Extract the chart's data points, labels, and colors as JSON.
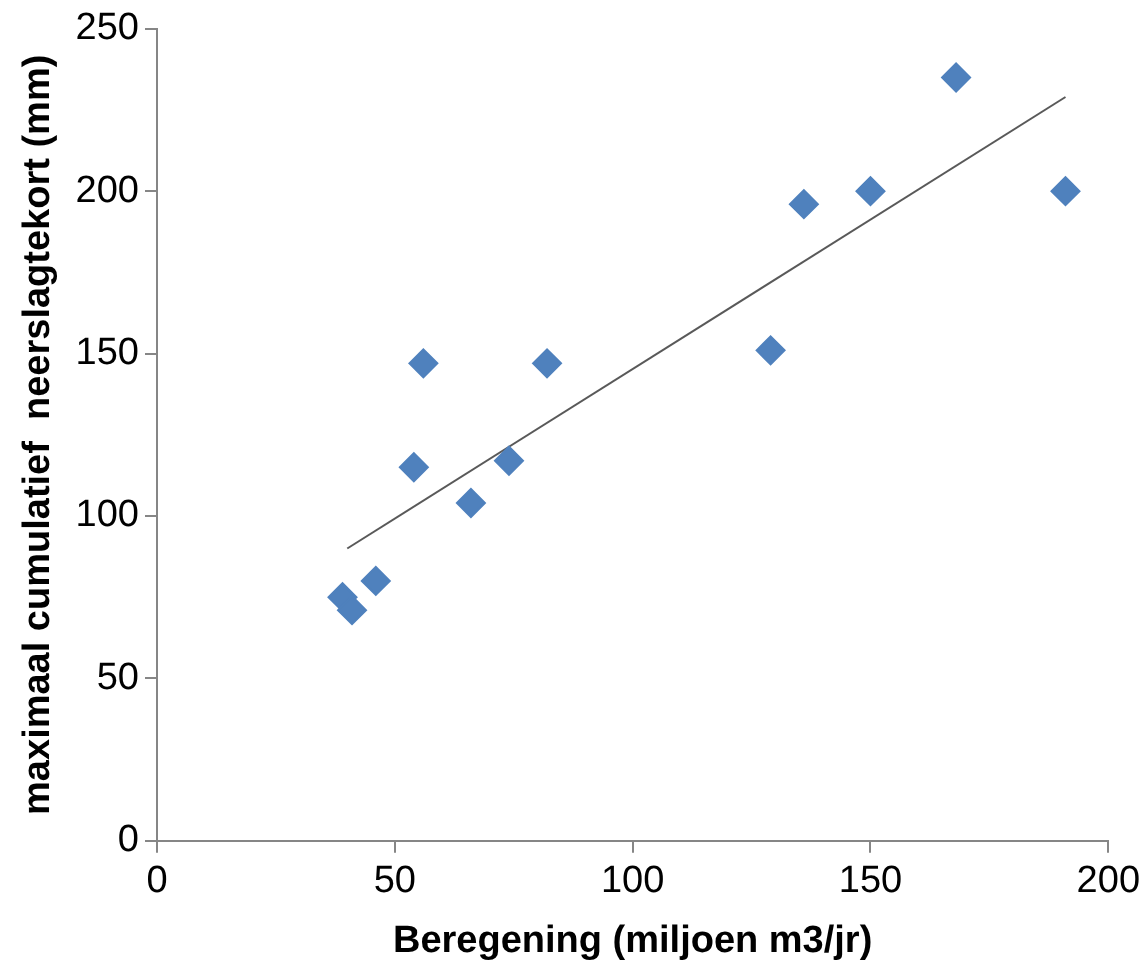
{
  "chart_data": {
    "type": "scatter",
    "xlabel": "Beregening (miljoen m3/jr)",
    "ylabel": "maximaal cumulatief  neerslagtekort (mm)",
    "xlim": [
      0,
      200
    ],
    "xticks": [
      0,
      50,
      100,
      150,
      200
    ],
    "ylim": [
      0,
      250
    ],
    "yticks": [
      0,
      50,
      100,
      150,
      200,
      250
    ],
    "grid": false,
    "legend": false,
    "series": [
      {
        "marker": "diamond",
        "color": "#4f81bd",
        "x": [
          39,
          41,
          46,
          54,
          56,
          66,
          74,
          82,
          129,
          136,
          150,
          168,
          191
        ],
        "values": [
          75,
          71,
          80,
          115,
          147,
          104,
          117,
          147,
          151,
          196,
          200,
          235,
          200
        ]
      },
      {
        "type": "line",
        "marker": "none",
        "color": "#595959",
        "x": [
          40,
          191
        ],
        "values": [
          90,
          229
        ]
      }
    ]
  }
}
